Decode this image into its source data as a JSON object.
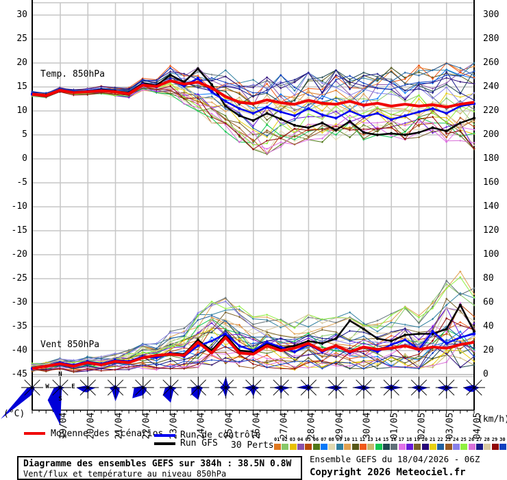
{
  "labels": {
    "temp": "Temp. 850hPa",
    "wind": "Vent 850hPa"
  },
  "axes": {
    "left_unit": "(°C)",
    "right_unit": "(km/h)",
    "left_ticks": [
      30,
      25,
      20,
      15,
      10,
      5,
      0,
      -5,
      -10,
      -15,
      -20,
      -25,
      -30,
      -35,
      -40,
      -45
    ],
    "right_ticks": [
      300,
      280,
      260,
      240,
      220,
      200,
      180,
      160,
      140,
      120,
      100,
      80,
      60,
      40,
      20,
      0
    ],
    "dates": [
      "19/04",
      "20/04",
      "21/04",
      "22/04",
      "23/04",
      "24/04",
      "25/04",
      "26/04",
      "27/04",
      "28/04",
      "29/04",
      "30/04",
      "01/05",
      "02/05",
      "03/05",
      "04/05"
    ]
  },
  "legend": {
    "mean": "Moyenne des scénarios",
    "control": "Run de contrôle",
    "gfs": "Run GFS",
    "perts": "30 Perts.",
    "pert_numbers": [
      "01",
      "02",
      "03",
      "04",
      "05",
      "06",
      "07",
      "08",
      "09",
      "10",
      "11",
      "12",
      "13",
      "14",
      "15",
      "16",
      "17",
      "18",
      "19",
      "20",
      "21",
      "22",
      "23",
      "24",
      "25",
      "26",
      "27",
      "28",
      "29",
      "30"
    ],
    "pert_colors": [
      "#E07820",
      "#88C868",
      "#E8C000",
      "#8850A8",
      "#B84808",
      "#507818",
      "#0878F8",
      "#E0D8B0",
      "#3080A0",
      "#E0A050",
      "#585818",
      "#F05818",
      "#C8B870",
      "#10C850",
      "#204850",
      "#607078",
      "#E070E8",
      "#6818D8",
      "#786028",
      "#280878",
      "#E8D010",
      "#2060A0",
      "#985820",
      "#8880E8",
      "#90F040",
      "#D870D8",
      "#181888",
      "#D8C8A0",
      "#900808",
      "#1040C0"
    ]
  },
  "colors": {
    "mean": "#f00000",
    "control": "#0000f0",
    "gfs": "#000000",
    "grid": "#c6c6c6",
    "axis": "#000000",
    "rose_fill": "#0000d8"
  },
  "info_box": {
    "line1": "Diagramme des ensembles GEFS sur 384h : 38.5N 0.8W",
    "line2": "Vent/flux et température au niveau 850hPa"
  },
  "footer": {
    "line1": "Ensemble GEFS du 18/04/2026 - 06Z",
    "line2": "Copyright 2026 Meteociel.fr"
  },
  "chart_data": [
    {
      "type": "line",
      "title": "Temp. 850hPa",
      "ylabel": "°C",
      "ylim": [
        -45,
        30
      ],
      "x_start": "18/04 06Z",
      "x_step_hours": 12,
      "categories": [
        "19/04",
        "20/04",
        "21/04",
        "22/04",
        "23/04",
        "24/04",
        "25/04",
        "26/04",
        "27/04",
        "28/04",
        "29/04",
        "30/04",
        "01/05",
        "02/05",
        "03/05",
        "04/05"
      ],
      "n_members": 30,
      "series": [
        {
          "name": "Moyenne des scénarios",
          "values": [
            13.5,
            13.2,
            14.3,
            13.8,
            14.0,
            14.2,
            14.0,
            13.6,
            15.4,
            15.1,
            16.3,
            15.6,
            16.0,
            14.8,
            13.0,
            11.8,
            11.5,
            12.3,
            11.7,
            11.4,
            12.2,
            11.6,
            11.4,
            12.0,
            11.2,
            11.6,
            11.0,
            11.4,
            11.0,
            11.3,
            10.8,
            11.4,
            11.8
          ]
        },
        {
          "name": "Run de contrôle",
          "values": [
            13.5,
            13.2,
            14.4,
            13.9,
            14.1,
            14.3,
            14.0,
            13.7,
            15.6,
            15.0,
            16.5,
            15.2,
            16.8,
            14.0,
            12.0,
            10.5,
            9.5,
            10.8,
            9.8,
            9.0,
            10.5,
            9.2,
            8.5,
            10.0,
            8.8,
            9.5,
            8.2,
            9.0,
            9.8,
            10.5,
            9.5,
            11.0,
            11.5
          ]
        },
        {
          "name": "Run GFS",
          "values": [
            13.5,
            13.3,
            14.2,
            13.8,
            14.0,
            14.4,
            14.1,
            13.8,
            15.8,
            15.3,
            17.5,
            16.0,
            18.8,
            15.5,
            11.0,
            9.0,
            8.0,
            9.5,
            8.3,
            7.0,
            6.5,
            7.5,
            6.0,
            7.8,
            5.5,
            5.0,
            5.3,
            5.0,
            5.5,
            6.5,
            5.8,
            7.5,
            8.5
          ]
        }
      ],
      "envelope_min": [
        13.0,
        12.8,
        13.8,
        13.3,
        13.4,
        13.6,
        13.2,
        12.8,
        14.3,
        13.8,
        13.0,
        11.5,
        10.0,
        7.5,
        5.5,
        3.5,
        2.0,
        1.0,
        2.5,
        3.0,
        4.0,
        3.5,
        4.0,
        4.5,
        4.0,
        5.0,
        4.5,
        4.0,
        4.5,
        5.0,
        3.5,
        3.0,
        2.0
      ],
      "envelope_max": [
        14.2,
        13.8,
        15.0,
        14.5,
        14.8,
        15.2,
        15.0,
        15.0,
        16.8,
        16.5,
        19.5,
        18.5,
        19.0,
        18.0,
        18.5,
        17.0,
        16.5,
        17.0,
        17.5,
        16.5,
        18.0,
        17.0,
        18.5,
        17.5,
        18.0,
        18.5,
        19.0,
        18.0,
        19.5,
        18.5,
        20.0,
        19.0,
        20.0
      ]
    },
    {
      "type": "line",
      "title": "Vent 850hPa",
      "ylabel": "km/h",
      "ylim": [
        0,
        300
      ],
      "x_start": "18/04 06Z",
      "x_step_hours": 12,
      "categories": [
        "19/04",
        "20/04",
        "21/04",
        "22/04",
        "23/04",
        "24/04",
        "25/04",
        "26/04",
        "27/04",
        "28/04",
        "29/04",
        "30/04",
        "01/05",
        "02/05",
        "03/05",
        "04/05"
      ],
      "n_members": 30,
      "series": [
        {
          "name": "Moyenne des scénarios",
          "values": [
            5,
            7,
            9,
            7,
            10,
            8,
            11,
            10,
            14,
            16,
            17,
            16,
            27,
            18,
            31,
            18,
            17,
            24,
            20,
            22,
            26,
            20,
            24,
            19,
            23,
            21,
            22,
            24,
            21,
            23,
            22,
            25,
            27
          ]
        },
        {
          "name": "Run de contrôle",
          "values": [
            5,
            7,
            10,
            8,
            11,
            9,
            12,
            11,
            15,
            14,
            18,
            15,
            24,
            28,
            34,
            24,
            20,
            27,
            23,
            19,
            25,
            19,
            24,
            18,
            23,
            19,
            25,
            29,
            21,
            36,
            26,
            31,
            34
          ]
        },
        {
          "name": "Run GFS",
          "values": [
            5,
            7,
            9,
            8,
            10,
            9,
            12,
            11,
            15,
            15,
            18,
            17,
            29,
            20,
            33,
            20,
            19,
            26,
            22,
            24,
            28,
            26,
            30,
            45,
            38,
            30,
            28,
            33,
            34,
            34,
            38,
            58,
            36
          ]
        }
      ],
      "envelope_min": [
        2,
        2,
        3,
        2,
        3,
        3,
        4,
        4,
        5,
        4,
        5,
        5,
        6,
        8,
        9,
        7,
        5,
        6,
        5,
        4,
        5,
        5,
        5,
        5,
        5,
        5,
        6,
        6,
        5,
        6,
        5,
        6,
        8
      ],
      "envelope_max": [
        10,
        12,
        14,
        12,
        15,
        15,
        18,
        22,
        28,
        26,
        36,
        40,
        55,
        68,
        70,
        58,
        48,
        52,
        46,
        44,
        50,
        46,
        48,
        52,
        48,
        46,
        52,
        58,
        50,
        62,
        88,
        86,
        72
      ]
    }
  ],
  "wind_roses": {
    "compass": {
      "n": "N",
      "e": "E",
      "s": "S",
      "w": "W"
    },
    "radii": [
      [
        3,
        2,
        4,
        4,
        10,
        65,
        7,
        2
      ],
      [
        4,
        2,
        7,
        3,
        55,
        26,
        9,
        3
      ],
      [
        3,
        2,
        12,
        5,
        7,
        9,
        17,
        4
      ],
      [
        5,
        2,
        6,
        8,
        20,
        7,
        9,
        3
      ],
      [
        3,
        2,
        5,
        7,
        11,
        22,
        13,
        3
      ],
      [
        4,
        2,
        9,
        6,
        22,
        16,
        8,
        3
      ],
      [
        4,
        3,
        7,
        6,
        18,
        14,
        10,
        3
      ],
      [
        16,
        5,
        7,
        4,
        15,
        6,
        9,
        6
      ],
      [
        5,
        3,
        9,
        5,
        13,
        6,
        14,
        4
      ],
      [
        4,
        3,
        14,
        5,
        9,
        4,
        12,
        3
      ],
      [
        5,
        3,
        8,
        3,
        6,
        4,
        18,
        5
      ],
      [
        4,
        3,
        10,
        4,
        6,
        4,
        16,
        4
      ],
      [
        4,
        3,
        11,
        4,
        5,
        4,
        17,
        4
      ],
      [
        5,
        4,
        16,
        4,
        6,
        4,
        13,
        4
      ],
      [
        4,
        3,
        14,
        5,
        8,
        4,
        12,
        4
      ],
      [
        4,
        3,
        11,
        4,
        6,
        5,
        15,
        4
      ],
      [
        4,
        3,
        8,
        4,
        6,
        9,
        16,
        5
      ]
    ]
  }
}
